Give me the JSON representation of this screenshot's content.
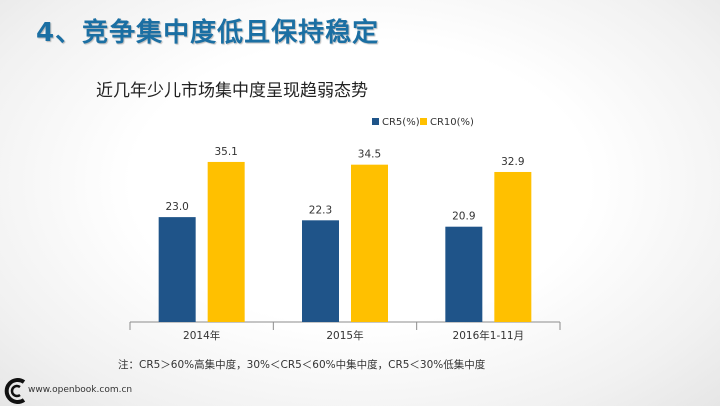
{
  "slide": {
    "title": "4、竞争集中度低且保持稳定",
    "subtitle": "近几年少儿市场集中度呈现趋弱态势",
    "footnote": "注：CR5＞60%高集中度，30%＜CR5＜60%中集中度，CR5＜30%低集中度",
    "footer_url": "www.openbook.com.cn"
  },
  "colors": {
    "title": "#1b6fa3",
    "cr5": "#1f5489",
    "cr10": "#ffc000",
    "axis": "#8c8c8c"
  },
  "chart_data": {
    "type": "bar",
    "categories": [
      "2014年",
      "2015年",
      "2016年1-11月"
    ],
    "series": [
      {
        "name": "CR5(%)",
        "values": [
          23.0,
          22.3,
          20.9
        ]
      },
      {
        "name": "CR10(%)",
        "values": [
          35.1,
          34.5,
          32.9
        ]
      }
    ],
    "data_labels": [
      [
        "23.0",
        "22.3",
        "20.9"
      ],
      [
        "35.1",
        "34.5",
        "32.9"
      ]
    ],
    "legend_position": "top-right",
    "grid": false,
    "ylim": [
      0,
      40
    ]
  }
}
